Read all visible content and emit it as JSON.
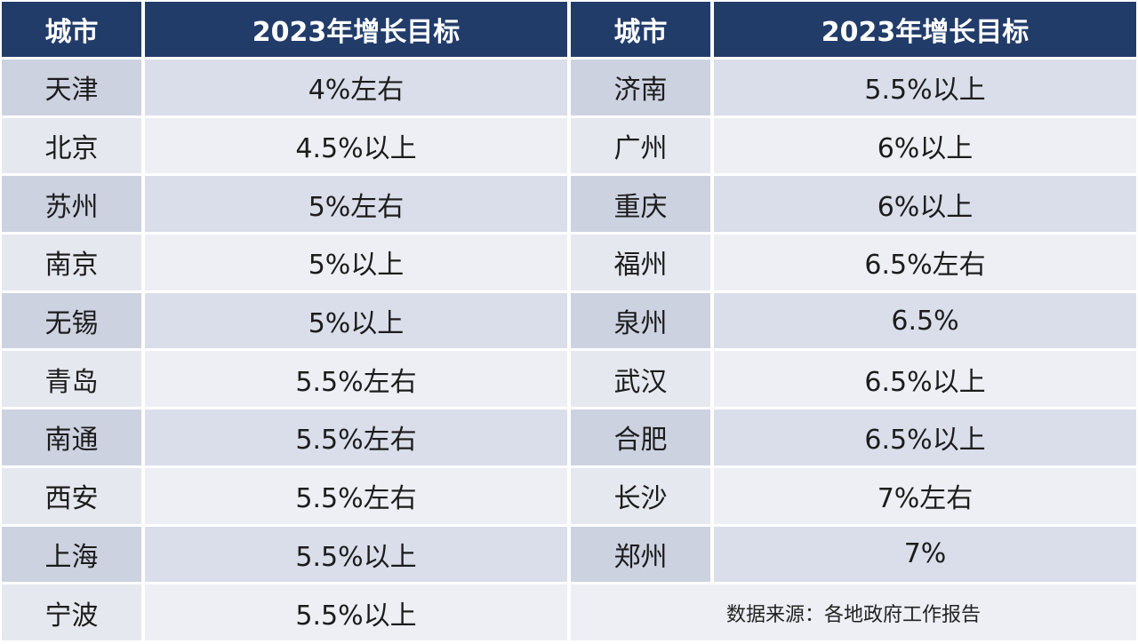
{
  "chart_data": {
    "type": "table",
    "columns": [
      "城市",
      "2023年增长目标",
      "城市",
      "2023年增长目标"
    ],
    "left_rows": [
      {
        "city": "天津",
        "target": "4%左右"
      },
      {
        "city": "北京",
        "target": "4.5%以上"
      },
      {
        "city": "苏州",
        "target": "5%左右"
      },
      {
        "city": "南京",
        "target": "5%以上"
      },
      {
        "city": "无锡",
        "target": "5%以上"
      },
      {
        "city": "青岛",
        "target": "5.5%左右"
      },
      {
        "city": "南通",
        "target": "5.5%左右"
      },
      {
        "city": "西安",
        "target": "5.5%左右"
      },
      {
        "city": "上海",
        "target": "5.5%以上"
      },
      {
        "city": "宁波",
        "target": "5.5%以上"
      }
    ],
    "right_rows": [
      {
        "city": "济南",
        "target": "5.5%以上"
      },
      {
        "city": "广州",
        "target": "6%以上"
      },
      {
        "city": "重庆",
        "target": "6%以上"
      },
      {
        "city": "福州",
        "target": "6.5%左右"
      },
      {
        "city": "泉州",
        "target": "6.5%"
      },
      {
        "city": "武汉",
        "target": "6.5%以上"
      },
      {
        "city": "合肥",
        "target": "6.5%以上"
      },
      {
        "city": "长沙",
        "target": "7%左右"
      },
      {
        "city": "郑州",
        "target": "7%"
      }
    ],
    "source": "数据来源：各地政府工作报告"
  },
  "colors": {
    "header_bg": "#223c6a",
    "header_text": "#ffffff",
    "row_band_dark": "#cdd2e1",
    "row_band_light": "#e6e8ef"
  }
}
